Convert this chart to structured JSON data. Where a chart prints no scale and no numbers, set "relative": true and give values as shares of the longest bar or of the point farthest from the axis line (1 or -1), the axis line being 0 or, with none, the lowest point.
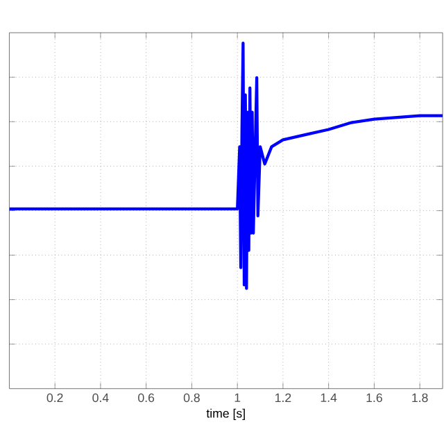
{
  "chart_data": {
    "type": "line",
    "relative": true,
    "xlabel": "time [s]",
    "xlim": [
      0,
      1.9
    ],
    "xticks": [
      0.2,
      0.4,
      0.6,
      0.8,
      1,
      1.2,
      1.4,
      1.6,
      1.8
    ],
    "grid": true,
    "x": [
      0,
      0.2,
      0.4,
      0.6,
      0.8,
      1.0,
      1.01,
      1.015,
      1.02,
      1.025,
      1.03,
      1.035,
      1.04,
      1.045,
      1.05,
      1.055,
      1.06,
      1.065,
      1.07,
      1.08,
      1.085,
      1.09,
      1.1,
      1.12,
      1.15,
      1.2,
      1.3,
      1.4,
      1.5,
      1.6,
      1.7,
      1.8,
      1.9
    ],
    "series": [
      {
        "color": "#0000ff",
        "values": [
          0.52,
          0.52,
          0.52,
          0.52,
          0.52,
          0.52,
          0.7,
          0.35,
          0.75,
          1.0,
          0.3,
          0.85,
          0.29,
          0.8,
          0.4,
          0.87,
          0.45,
          0.8,
          0.45,
          0.75,
          0.9,
          0.5,
          0.7,
          0.65,
          0.7,
          0.72,
          0.735,
          0.75,
          0.77,
          0.78,
          0.785,
          0.79,
          0.79
        ]
      }
    ]
  }
}
